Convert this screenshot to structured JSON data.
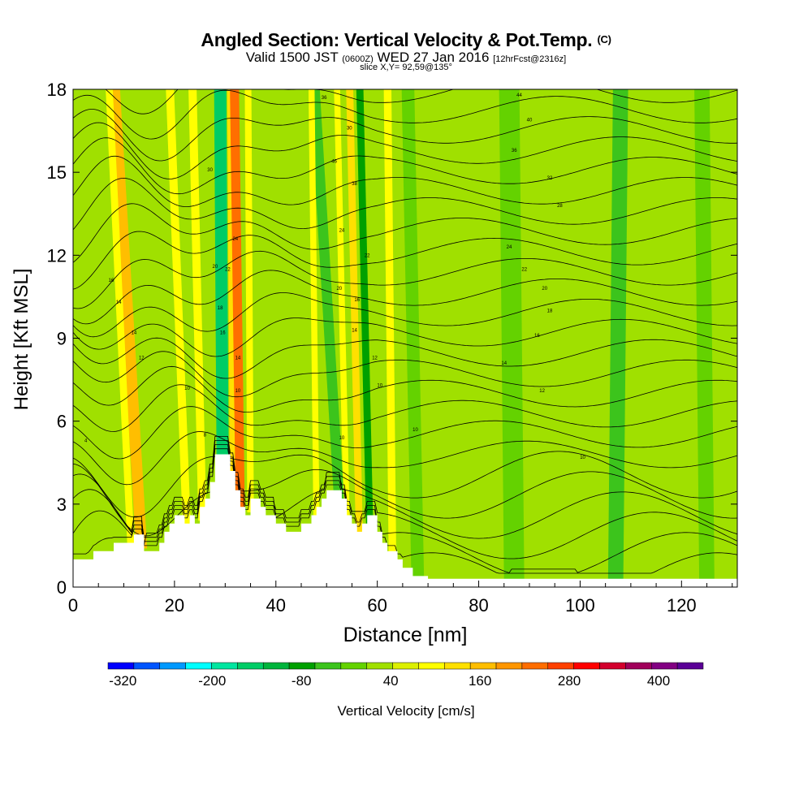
{
  "header": {
    "title_main": "Angled Section: Vertical Velocity & Pot.Temp.",
    "title_unit": "(C)",
    "valid_prefix": "Valid 1500 JST",
    "valid_utc": "(0600Z)",
    "valid_date": "WED 27 Jan 2016",
    "forecast_info": "[12hrFcst@2316z]",
    "slice_info": "slice X,Y= 92,59@135°"
  },
  "colors": {
    "scale": [
      "#0000ff",
      "#0055ff",
      "#0099ff",
      "#00ffff",
      "#00e6a0",
      "#00cc66",
      "#00b43c",
      "#00a000",
      "#3cc41c",
      "#64d200",
      "#a0e000",
      "#dcf000",
      "#ffff00",
      "#ffe000",
      "#ffbe00",
      "#ff9600",
      "#ff6e00",
      "#ff4000",
      "#ff0000",
      "#d2002d",
      "#a0005a",
      "#820082",
      "#5a0096"
    ],
    "background_field": "#a0e000",
    "terrain": "#ffffff"
  },
  "chart_data": {
    "type": "heatmap",
    "xlabel": "Distance [nm]",
    "ylabel": "Height [Kft MSL]",
    "xlim": [
      0,
      131
    ],
    "ylim": [
      0,
      18
    ],
    "x_ticks": [
      0,
      20,
      40,
      60,
      80,
      100,
      120
    ],
    "y_ticks": [
      0,
      3,
      6,
      9,
      12,
      15,
      18
    ],
    "terrain_profile": [
      [
        0,
        1.0
      ],
      [
        4,
        1.0
      ],
      [
        4,
        1.3
      ],
      [
        8,
        1.3
      ],
      [
        8,
        1.6
      ],
      [
        12,
        1.6
      ],
      [
        12,
        1.9
      ],
      [
        14,
        1.9
      ],
      [
        14,
        1.3
      ],
      [
        17,
        1.3
      ],
      [
        17,
        1.6
      ],
      [
        18,
        1.6
      ],
      [
        18,
        2.0
      ],
      [
        19,
        2.0
      ],
      [
        19,
        2.3
      ],
      [
        20,
        2.3
      ],
      [
        20,
        2.6
      ],
      [
        22,
        2.6
      ],
      [
        22,
        2.3
      ],
      [
        23,
        2.3
      ],
      [
        23,
        2.6
      ],
      [
        24,
        2.6
      ],
      [
        24,
        2.3
      ],
      [
        25,
        2.3
      ],
      [
        25,
        2.9
      ],
      [
        26,
        2.9
      ],
      [
        26,
        3.2
      ],
      [
        27,
        3.2
      ],
      [
        27,
        3.8
      ],
      [
        28,
        3.8
      ],
      [
        28,
        4.8
      ],
      [
        31,
        4.8
      ],
      [
        31,
        4.2
      ],
      [
        32,
        4.2
      ],
      [
        32,
        3.5
      ],
      [
        33,
        3.5
      ],
      [
        33,
        2.9
      ],
      [
        34,
        2.9
      ],
      [
        34,
        2.6
      ],
      [
        35,
        2.6
      ],
      [
        35,
        3.2
      ],
      [
        37,
        3.2
      ],
      [
        37,
        2.9
      ],
      [
        38,
        2.9
      ],
      [
        38,
        2.6
      ],
      [
        40,
        2.6
      ],
      [
        40,
        2.3
      ],
      [
        42,
        2.3
      ],
      [
        42,
        2.0
      ],
      [
        45,
        2.0
      ],
      [
        45,
        2.3
      ],
      [
        47,
        2.3
      ],
      [
        47,
        2.6
      ],
      [
        48,
        2.6
      ],
      [
        48,
        2.9
      ],
      [
        49,
        2.9
      ],
      [
        49,
        3.2
      ],
      [
        50,
        3.2
      ],
      [
        50,
        3.5
      ],
      [
        53,
        3.5
      ],
      [
        53,
        3.2
      ],
      [
        54,
        3.2
      ],
      [
        54,
        2.6
      ],
      [
        55,
        2.6
      ],
      [
        55,
        2.3
      ],
      [
        56,
        2.3
      ],
      [
        56,
        2.0
      ],
      [
        57,
        2.0
      ],
      [
        57,
        2.3
      ],
      [
        58,
        2.3
      ],
      [
        58,
        2.6
      ],
      [
        60,
        2.6
      ],
      [
        60,
        2.0
      ],
      [
        61,
        2.0
      ],
      [
        61,
        1.6
      ],
      [
        62,
        1.6
      ],
      [
        62,
        1.3
      ],
      [
        64,
        1.3
      ],
      [
        64,
        1.0
      ],
      [
        65,
        1.0
      ],
      [
        65,
        0.7
      ],
      [
        67,
        0.7
      ],
      [
        67,
        0.4
      ],
      [
        70,
        0.4
      ],
      [
        70,
        0.3
      ],
      [
        131,
        0.3
      ]
    ],
    "velocity_bands": [
      {
        "x_bottom": 13.5,
        "x_top": 8,
        "width": 2.2,
        "velocity": 180
      },
      {
        "x_bottom": 11.5,
        "x_top": 7,
        "width": 1.4,
        "velocity": 80
      },
      {
        "x_bottom": 22.5,
        "x_top": 19,
        "width": 1.6,
        "velocity": 80
      },
      {
        "x_bottom": 25.5,
        "x_top": 23.5,
        "width": 1.6,
        "velocity": 80
      },
      {
        "x_bottom": 29.5,
        "x_top": 29,
        "width": 2.4,
        "velocity": -160
      },
      {
        "x_bottom": 31.5,
        "x_top": 31,
        "width": 1.2,
        "velocity": 120
      },
      {
        "x_bottom": 33,
        "x_top": 31.8,
        "width": 1.8,
        "velocity": 240
      },
      {
        "x_bottom": 35,
        "x_top": 34.5,
        "width": 1.3,
        "velocity": 80
      },
      {
        "x_bottom": 54,
        "x_top": 52,
        "width": 1.2,
        "velocity": 80
      },
      {
        "x_bottom": 56.5,
        "x_top": 54.5,
        "width": 1.4,
        "velocity": 120
      },
      {
        "x_bottom": 58.5,
        "x_top": 56.5,
        "width": 1.4,
        "velocity": -80
      },
      {
        "x_bottom": 52.5,
        "x_top": 47.5,
        "width": 2.0,
        "velocity": -40
      },
      {
        "x_bottom": 68,
        "x_top": 66,
        "width": 2.5,
        "velocity": -20
      },
      {
        "x_bottom": 87,
        "x_top": 86,
        "width": 4.0,
        "velocity": -20
      },
      {
        "x_bottom": 107,
        "x_top": 108,
        "width": 3.0,
        "velocity": -40
      },
      {
        "x_bottom": 125,
        "x_top": 124,
        "width": 3.0,
        "velocity": -20
      },
      {
        "x_bottom": 63,
        "x_top": 62,
        "width": 1.5,
        "velocity": 80
      },
      {
        "x_bottom": 48,
        "x_top": 47,
        "width": 1.2,
        "velocity": 80
      }
    ],
    "theta_levels": [
      4,
      6,
      8,
      10,
      12,
      14,
      16,
      18,
      20,
      22,
      24,
      26,
      28,
      30,
      32,
      34,
      36,
      38,
      40,
      42,
      44,
      46,
      48,
      50,
      52
    ],
    "contour_labels": [
      {
        "x": 2.5,
        "y": 5.3,
        "text": "4"
      },
      {
        "x": 7.5,
        "y": 11.1,
        "text": "16"
      },
      {
        "x": 9,
        "y": 10.3,
        "text": "14"
      },
      {
        "x": 13.5,
        "y": 8.3,
        "text": "12"
      },
      {
        "x": 12,
        "y": 9.2,
        "text": "14"
      },
      {
        "x": 27,
        "y": 15.1,
        "text": "30"
      },
      {
        "x": 32,
        "y": 12.6,
        "text": "24"
      },
      {
        "x": 28,
        "y": 11.6,
        "text": "20"
      },
      {
        "x": 30.5,
        "y": 11.5,
        "text": "22"
      },
      {
        "x": 29,
        "y": 10.1,
        "text": "18"
      },
      {
        "x": 29.5,
        "y": 9.2,
        "text": "16"
      },
      {
        "x": 32.5,
        "y": 8.3,
        "text": "14"
      },
      {
        "x": 32.5,
        "y": 7.1,
        "text": "10"
      },
      {
        "x": 22.5,
        "y": 7.2,
        "text": "10"
      },
      {
        "x": 26,
        "y": 5.5,
        "text": "8"
      },
      {
        "x": 49.5,
        "y": 17.7,
        "text": "36"
      },
      {
        "x": 54.5,
        "y": 16.6,
        "text": "30"
      },
      {
        "x": 51.5,
        "y": 15.4,
        "text": "46"
      },
      {
        "x": 55.5,
        "y": 14.6,
        "text": "38"
      },
      {
        "x": 53,
        "y": 12.9,
        "text": "24"
      },
      {
        "x": 58,
        "y": 12.0,
        "text": "22"
      },
      {
        "x": 52.5,
        "y": 10.8,
        "text": "20"
      },
      {
        "x": 56,
        "y": 10.4,
        "text": "16"
      },
      {
        "x": 55.5,
        "y": 9.3,
        "text": "14"
      },
      {
        "x": 59.5,
        "y": 8.3,
        "text": "12"
      },
      {
        "x": 60.5,
        "y": 7.3,
        "text": "10"
      },
      {
        "x": 53,
        "y": 5.4,
        "text": "10"
      },
      {
        "x": 67.5,
        "y": 5.7,
        "text": "10"
      },
      {
        "x": 88,
        "y": 17.8,
        "text": "44"
      },
      {
        "x": 90,
        "y": 16.9,
        "text": "40"
      },
      {
        "x": 87,
        "y": 15.8,
        "text": "36"
      },
      {
        "x": 94,
        "y": 14.8,
        "text": "32"
      },
      {
        "x": 96,
        "y": 13.8,
        "text": "28"
      },
      {
        "x": 86,
        "y": 12.3,
        "text": "24"
      },
      {
        "x": 89,
        "y": 11.5,
        "text": "22"
      },
      {
        "x": 93,
        "y": 10.8,
        "text": "20"
      },
      {
        "x": 94,
        "y": 10.0,
        "text": "18"
      },
      {
        "x": 91.5,
        "y": 9.1,
        "text": "16"
      },
      {
        "x": 85,
        "y": 8.1,
        "text": "14"
      },
      {
        "x": 92.5,
        "y": 7.1,
        "text": "12"
      },
      {
        "x": 100.5,
        "y": 4.7,
        "text": "10"
      }
    ]
  },
  "axes": {
    "x_tick_labels": [
      "0",
      "20",
      "40",
      "60",
      "80",
      "100",
      "120"
    ],
    "y_tick_labels": [
      "0",
      "3",
      "6",
      "9",
      "12",
      "15",
      "18"
    ],
    "xlabel": "Distance [nm]",
    "ylabel": "Height [Kft MSL]"
  },
  "colorbar": {
    "label": "Vertical Velocity [cm/s]",
    "min": -340,
    "max": 460,
    "tick_values": [
      -320,
      -200,
      -80,
      40,
      160,
      280,
      400
    ],
    "tick_labels": [
      "-320",
      "-200",
      "-80",
      "40",
      "160",
      "280",
      "400"
    ]
  }
}
